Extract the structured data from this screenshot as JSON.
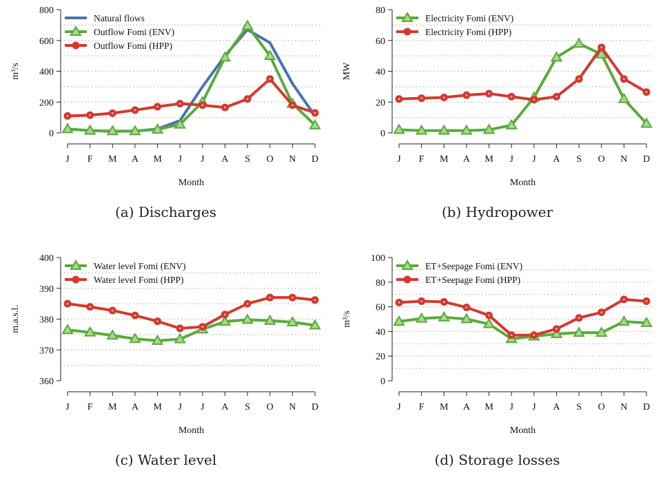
{
  "panels": [
    {
      "caption": "(a)  Discharges",
      "chart_data": {
        "type": "line",
        "xlabel": "Month",
        "ylabel": "m³/s",
        "categories": [
          "J",
          "F",
          "M",
          "A",
          "M",
          "J",
          "J",
          "A",
          "S",
          "O",
          "N",
          "D"
        ],
        "ylim": [
          0,
          800
        ],
        "yticks": [
          0,
          200,
          400,
          600,
          800
        ],
        "grid": "horizontal dotted",
        "legend_position": "top-left",
        "series": [
          {
            "name": "Natural flows",
            "color": "#4a72b0",
            "marker": "none",
            "values": [
              25,
              15,
              10,
              12,
              25,
              80,
              300,
              500,
              670,
              585,
              320,
              110
            ]
          },
          {
            "name": "Outflow Fomi (ENV)",
            "color": "#5aaa3c",
            "marker": "triangle",
            "values": [
              25,
              15,
              12,
              12,
              22,
              55,
              200,
              490,
              695,
              500,
              190,
              50
            ]
          },
          {
            "name": "Outflow Fomi (HPP)",
            "color": "#d23a2e",
            "marker": "circle",
            "values": [
              110,
              115,
              128,
              148,
              170,
              190,
              180,
              165,
              220,
              350,
              180,
              130
            ]
          }
        ]
      }
    },
    {
      "caption": "(b)  Hydropower",
      "chart_data": {
        "type": "line",
        "xlabel": "Month",
        "ylabel": "MW",
        "categories": [
          "J",
          "F",
          "M",
          "A",
          "M",
          "J",
          "J",
          "A",
          "S",
          "O",
          "N",
          "D"
        ],
        "ylim": [
          0,
          80
        ],
        "yticks": [
          0,
          20,
          40,
          60,
          80
        ],
        "grid": "horizontal dotted",
        "legend_position": "top-left",
        "series": [
          {
            "name": "Electricity Fomi (ENV)",
            "color": "#5aaa3c",
            "marker": "triangle",
            "values": [
              2,
              1.5,
              1.5,
              1.5,
              2,
              5,
              23,
              49,
              58,
              51,
              22,
              6
            ]
          },
          {
            "name": "Electricity Fomi (HPP)",
            "color": "#d23a2e",
            "marker": "circle",
            "values": [
              22,
              22.5,
              23,
              24.5,
              25.5,
              23.5,
              21.5,
              23.5,
              35,
              55.5,
              35,
              26.5
            ]
          }
        ]
      }
    },
    {
      "caption": "(c)  Water level",
      "chart_data": {
        "type": "line",
        "xlabel": "Month",
        "ylabel": "m.a.s.l.",
        "categories": [
          "J",
          "F",
          "M",
          "A",
          "M",
          "J",
          "J",
          "A",
          "S",
          "O",
          "N",
          "D"
        ],
        "ylim": [
          360,
          400
        ],
        "yticks": [
          360,
          370,
          380,
          390,
          400
        ],
        "grid": "horizontal dotted",
        "legend_position": "top-left",
        "series": [
          {
            "name": "Water level Fomi (ENV)",
            "color": "#5aaa3c",
            "marker": "triangle",
            "values": [
              376.5,
              375.7,
              374.7,
              373.6,
              373,
              373.5,
              376.7,
              379.2,
              379.8,
              379.5,
              379,
              378
            ]
          },
          {
            "name": "Water level Fomi (HPP)",
            "color": "#d23a2e",
            "marker": "circle",
            "values": [
              385,
              384,
              382.8,
              381.2,
              379.3,
              377,
              377.5,
              381.5,
              385,
              387,
              387,
              386.2
            ]
          }
        ]
      }
    },
    {
      "caption": "(d)  Storage losses",
      "chart_data": {
        "type": "line",
        "xlabel": "Month",
        "ylabel": "m³/s",
        "categories": [
          "J",
          "F",
          "M",
          "A",
          "M",
          "J",
          "J",
          "A",
          "S",
          "O",
          "N",
          "D"
        ],
        "ylim": [
          0,
          100
        ],
        "yticks": [
          0,
          20,
          40,
          60,
          80,
          100
        ],
        "grid": "horizontal dotted",
        "legend_position": "top-left",
        "series": [
          {
            "name": "ET+Seepage Fomi (ENV)",
            "color": "#5aaa3c",
            "marker": "triangle",
            "values": [
              48,
              50.5,
              51.5,
              50,
              46,
              34,
              36,
              38,
              39,
              39,
              48,
              47
            ]
          },
          {
            "name": "ET+Seepage Fomi (HPP)",
            "color": "#d23a2e",
            "marker": "circle",
            "values": [
              63.5,
              64.5,
              64,
              59.5,
              53,
              37,
              37,
              42,
              51,
              55.5,
              66,
              64.5
            ]
          }
        ]
      }
    }
  ]
}
